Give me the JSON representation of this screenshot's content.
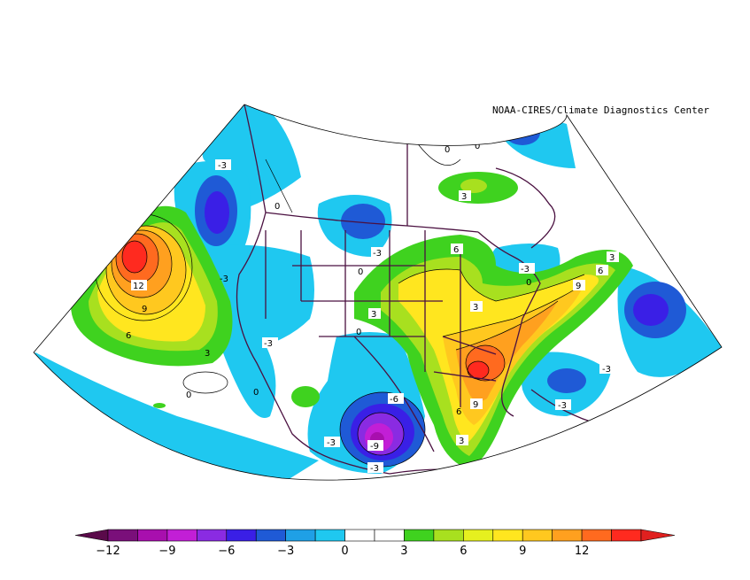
{
  "credit": "NOAA-CIRES/Climate Diagnostics Center",
  "colorbar": {
    "ticks": [
      "-12",
      "-9",
      "-6",
      "-3",
      "0",
      "3",
      "6",
      "9",
      "12"
    ],
    "colors": [
      "#7a0f7a",
      "#a80fae",
      "#c21fd6",
      "#8a2be2",
      "#3a1fe6",
      "#1f5ad6",
      "#1fa0e6",
      "#1fc8f0",
      "#ffffff",
      "#ffffff",
      "#3fd21f",
      "#a8e01f",
      "#e6f01f",
      "#ffe61f",
      "#ffc81f",
      "#ffa01f",
      "#ff6a1f",
      "#ff2a1f"
    ],
    "end_low_color": "#5a0a4a",
    "end_high_color": "#e0201f"
  },
  "contour_labels": [
    {
      "text": "-3"
    },
    {
      "text": "0"
    },
    {
      "text": "12"
    },
    {
      "text": "9"
    },
    {
      "text": "6"
    },
    {
      "text": "3"
    },
    {
      "text": "0"
    },
    {
      "text": "-3"
    },
    {
      "text": "0"
    },
    {
      "text": "-3"
    },
    {
      "text": "0"
    },
    {
      "text": "3"
    },
    {
      "text": "3"
    },
    {
      "text": "0"
    },
    {
      "text": "-3"
    },
    {
      "text": "3"
    },
    {
      "text": "6"
    },
    {
      "text": "3"
    },
    {
      "text": "9"
    },
    {
      "text": "6"
    },
    {
      "text": "3"
    },
    {
      "text": "-3"
    },
    {
      "text": "-3"
    },
    {
      "text": "9"
    },
    {
      "text": "-3"
    },
    {
      "text": "-6"
    },
    {
      "text": "-9"
    },
    {
      "text": "-3"
    },
    {
      "text": "-3"
    },
    {
      "text": "6"
    },
    {
      "text": "0"
    },
    {
      "text": "0"
    },
    {
      "text": "0"
    }
  ]
}
